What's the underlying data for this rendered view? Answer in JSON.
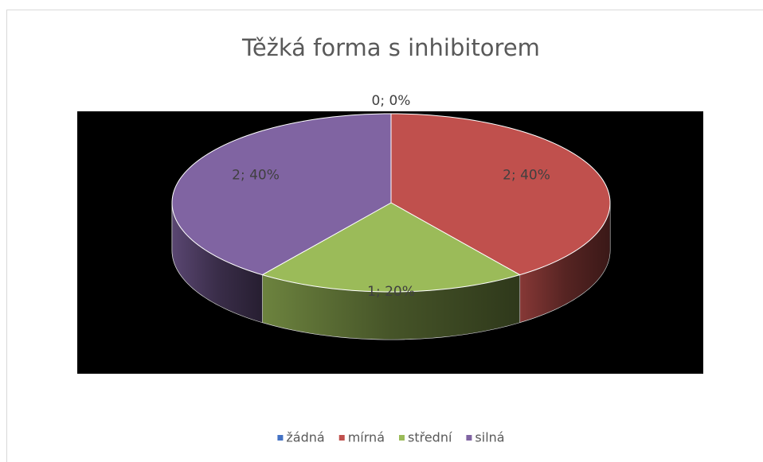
{
  "chart_data": {
    "type": "pie3d",
    "title": "Těžká forma s inhibitorem",
    "categories": [
      "žádná",
      "mírná",
      "střední",
      "silná"
    ],
    "values": [
      0,
      2,
      1,
      2
    ],
    "value_labels": [
      "0; 0%",
      "2; 40%",
      "1; 20%",
      "2; 40%"
    ],
    "colors": [
      "#4472c4",
      "#c0504d",
      "#9bbb59",
      "#8064a2"
    ],
    "legend": "bottom"
  }
}
